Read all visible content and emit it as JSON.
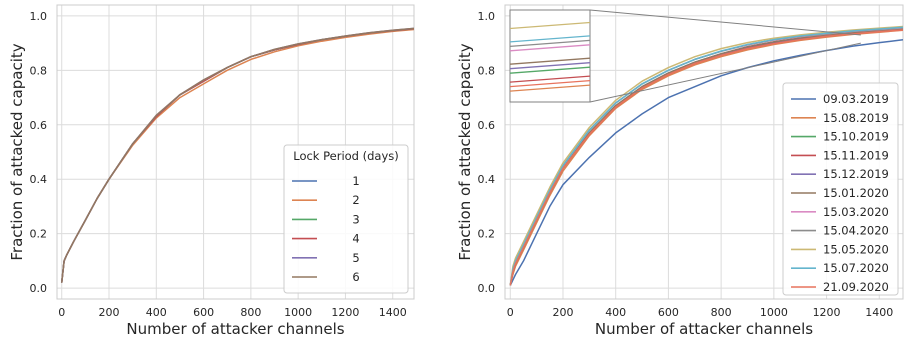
{
  "chart_data": [
    {
      "type": "line",
      "xlabel": "Number of attacker channels",
      "ylabel": "Fraction of attacked capacity",
      "xlim": [
        -20,
        1490
      ],
      "ylim": [
        -0.04,
        1.04
      ],
      "xticks": [
        0,
        200,
        400,
        600,
        800,
        1000,
        1200,
        1400
      ],
      "yticks": [
        0.0,
        0.2,
        0.4,
        0.6,
        0.8,
        1.0
      ],
      "xtick_labels": [
        "0",
        "200",
        "400",
        "600",
        "800",
        "1000",
        "1200",
        "1400"
      ],
      "ytick_labels": [
        "0.0",
        "0.2",
        "0.4",
        "0.6",
        "0.8",
        "1.0"
      ],
      "grid": true,
      "legend": {
        "title": "Lock Period (days)",
        "placement": "lower right"
      },
      "x": [
        0,
        10,
        20,
        50,
        100,
        150,
        200,
        300,
        400,
        500,
        600,
        700,
        800,
        900,
        1000,
        1100,
        1200,
        1300,
        1400,
        1490
      ],
      "series": [
        {
          "name": "1",
          "color": "#4c72b0",
          "values": [
            0.02,
            0.1,
            0.12,
            0.17,
            0.25,
            0.33,
            0.4,
            0.53,
            0.63,
            0.71,
            0.76,
            0.81,
            0.85,
            0.875,
            0.895,
            0.912,
            0.925,
            0.937,
            0.946,
            0.953
          ]
        },
        {
          "name": "2",
          "color": "#dd8452",
          "values": [
            0.02,
            0.1,
            0.12,
            0.17,
            0.25,
            0.33,
            0.4,
            0.525,
            0.625,
            0.7,
            0.75,
            0.8,
            0.84,
            0.868,
            0.89,
            0.907,
            0.921,
            0.933,
            0.943,
            0.95
          ]
        },
        {
          "name": "3",
          "color": "#55a868",
          "values": [
            0.02,
            0.1,
            0.12,
            0.17,
            0.25,
            0.33,
            0.4,
            0.53,
            0.63,
            0.71,
            0.76,
            0.81,
            0.85,
            0.875,
            0.895,
            0.912,
            0.925,
            0.937,
            0.946,
            0.953
          ]
        },
        {
          "name": "4",
          "color": "#c44e52",
          "values": [
            0.02,
            0.1,
            0.12,
            0.17,
            0.25,
            0.33,
            0.4,
            0.53,
            0.63,
            0.71,
            0.76,
            0.81,
            0.85,
            0.875,
            0.895,
            0.912,
            0.925,
            0.937,
            0.946,
            0.953
          ]
        },
        {
          "name": "5",
          "color": "#8172b3",
          "values": [
            0.02,
            0.1,
            0.12,
            0.17,
            0.25,
            0.33,
            0.4,
            0.53,
            0.635,
            0.71,
            0.765,
            0.81,
            0.85,
            0.877,
            0.897,
            0.913,
            0.926,
            0.938,
            0.947,
            0.954
          ]
        },
        {
          "name": "6",
          "color": "#937860",
          "values": [
            0.02,
            0.1,
            0.12,
            0.17,
            0.25,
            0.33,
            0.4,
            0.53,
            0.635,
            0.71,
            0.765,
            0.81,
            0.85,
            0.877,
            0.897,
            0.913,
            0.926,
            0.938,
            0.947,
            0.954
          ]
        }
      ]
    },
    {
      "type": "line",
      "xlabel": "Number of attacker channels",
      "ylabel": "Fraction of attacked capacity",
      "xlim": [
        -20,
        1490
      ],
      "ylim": [
        -0.04,
        1.04
      ],
      "xticks": [
        0,
        200,
        400,
        600,
        800,
        1000,
        1200,
        1400
      ],
      "yticks": [
        0.0,
        0.2,
        0.4,
        0.6,
        0.8,
        1.0
      ],
      "xtick_labels": [
        "0",
        "200",
        "400",
        "600",
        "800",
        "1000",
        "1200",
        "1400"
      ],
      "ytick_labels": [
        "0.0",
        "0.2",
        "0.4",
        "0.6",
        "0.8",
        "1.0"
      ],
      "grid": true,
      "legend": {
        "placement": "lower right"
      },
      "inset": {
        "placement": "upper left",
        "zoom_region": "upper right end of the curves",
        "color": "#808080"
      },
      "x": [
        0,
        10,
        20,
        50,
        100,
        150,
        200,
        300,
        400,
        500,
        600,
        700,
        800,
        900,
        1000,
        1100,
        1200,
        1300,
        1400,
        1490
      ],
      "series": [
        {
          "name": "09.03.2019",
          "color": "#4c72b0",
          "values": [
            0.01,
            0.03,
            0.05,
            0.1,
            0.2,
            0.3,
            0.38,
            0.48,
            0.57,
            0.64,
            0.7,
            0.74,
            0.78,
            0.81,
            0.835,
            0.855,
            0.873,
            0.889,
            0.902,
            0.912
          ]
        },
        {
          "name": "15.08.2019",
          "color": "#dd8452",
          "values": [
            0.01,
            0.05,
            0.08,
            0.14,
            0.24,
            0.34,
            0.43,
            0.56,
            0.66,
            0.73,
            0.78,
            0.82,
            0.85,
            0.875,
            0.895,
            0.91,
            0.922,
            0.932,
            0.94,
            0.947
          ]
        },
        {
          "name": "15.10.2019",
          "color": "#55a868",
          "values": [
            0.01,
            0.06,
            0.09,
            0.15,
            0.25,
            0.35,
            0.44,
            0.57,
            0.67,
            0.74,
            0.79,
            0.83,
            0.86,
            0.885,
            0.903,
            0.917,
            0.928,
            0.937,
            0.945,
            0.951
          ]
        },
        {
          "name": "15.11.2019",
          "color": "#c44e52",
          "values": [
            0.01,
            0.06,
            0.09,
            0.15,
            0.25,
            0.35,
            0.44,
            0.565,
            0.665,
            0.735,
            0.785,
            0.825,
            0.856,
            0.882,
            0.9,
            0.914,
            0.926,
            0.935,
            0.943,
            0.949
          ]
        },
        {
          "name": "15.12.2019",
          "color": "#8172b3",
          "values": [
            0.01,
            0.06,
            0.09,
            0.15,
            0.25,
            0.35,
            0.44,
            0.57,
            0.67,
            0.74,
            0.79,
            0.83,
            0.86,
            0.886,
            0.904,
            0.918,
            0.929,
            0.938,
            0.946,
            0.952
          ]
        },
        {
          "name": "15.01.2020",
          "color": "#937860",
          "values": [
            0.01,
            0.06,
            0.09,
            0.15,
            0.25,
            0.35,
            0.44,
            0.57,
            0.67,
            0.74,
            0.79,
            0.83,
            0.861,
            0.887,
            0.905,
            0.919,
            0.93,
            0.939,
            0.947,
            0.953
          ]
        },
        {
          "name": "15.03.2020",
          "color": "#da8bc3",
          "values": [
            0.01,
            0.07,
            0.1,
            0.16,
            0.26,
            0.36,
            0.45,
            0.58,
            0.68,
            0.75,
            0.8,
            0.84,
            0.87,
            0.893,
            0.911,
            0.924,
            0.934,
            0.943,
            0.95,
            0.956
          ]
        },
        {
          "name": "15.04.2020",
          "color": "#8c8c8c",
          "values": [
            0.01,
            0.07,
            0.1,
            0.16,
            0.26,
            0.36,
            0.45,
            0.58,
            0.68,
            0.75,
            0.8,
            0.84,
            0.87,
            0.894,
            0.912,
            0.925,
            0.935,
            0.944,
            0.951,
            0.957
          ]
        },
        {
          "name": "15.05.2020",
          "color": "#ccb974",
          "values": [
            0.01,
            0.08,
            0.11,
            0.17,
            0.27,
            0.37,
            0.46,
            0.59,
            0.69,
            0.76,
            0.81,
            0.85,
            0.88,
            0.902,
            0.918,
            0.93,
            0.94,
            0.948,
            0.955,
            0.961
          ]
        },
        {
          "name": "15.07.2020",
          "color": "#64b5cd",
          "values": [
            0.01,
            0.07,
            0.1,
            0.16,
            0.26,
            0.36,
            0.45,
            0.58,
            0.68,
            0.75,
            0.8,
            0.84,
            0.871,
            0.895,
            0.913,
            0.926,
            0.936,
            0.945,
            0.952,
            0.958
          ]
        },
        {
          "name": "21.09.2020",
          "color": "#e8735d",
          "values": [
            0.01,
            0.06,
            0.09,
            0.15,
            0.25,
            0.35,
            0.44,
            0.565,
            0.665,
            0.735,
            0.785,
            0.825,
            0.855,
            0.88,
            0.898,
            0.913,
            0.925,
            0.934,
            0.942,
            0.948
          ]
        }
      ]
    }
  ]
}
